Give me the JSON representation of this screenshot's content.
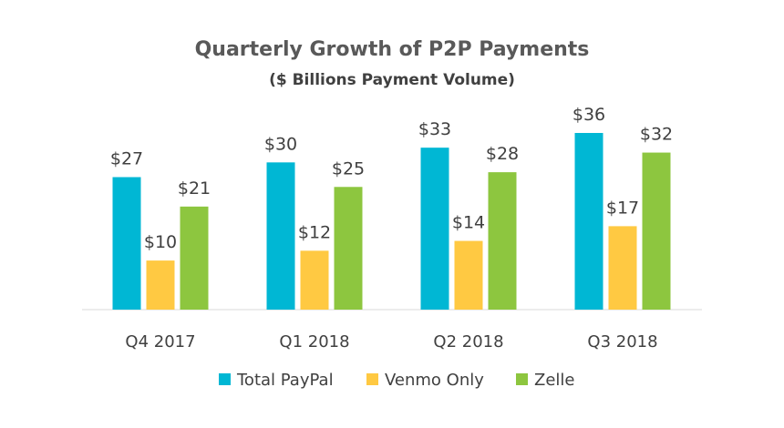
{
  "chart_data": {
    "type": "bar",
    "title": "Quarterly Growth of P2P Payments",
    "subtitle": "($ Billions Payment Volume)",
    "xlabel": "",
    "ylabel": "",
    "categories": [
      "Q4 2017",
      "Q1 2018",
      "Q2 2018",
      "Q3 2018"
    ],
    "series": [
      {
        "name": "Total PayPal",
        "color": "#00B7D4",
        "values": [
          27,
          30,
          33,
          36
        ],
        "labels": [
          "$27",
          "$30",
          "$33",
          "$36"
        ]
      },
      {
        "name": "Venmo Only",
        "color": "#FFC942",
        "values": [
          10,
          12,
          14,
          17
        ],
        "labels": [
          "$10",
          "$12",
          "$14",
          "$17"
        ]
      },
      {
        "name": "Zelle",
        "color": "#8DC63F",
        "values": [
          21,
          25,
          28,
          32
        ],
        "labels": [
          "$21",
          "$25",
          "$28",
          "$32"
        ]
      }
    ],
    "ylim": [
      0,
      36
    ],
    "grid": false,
    "legend_position": "bottom"
  }
}
